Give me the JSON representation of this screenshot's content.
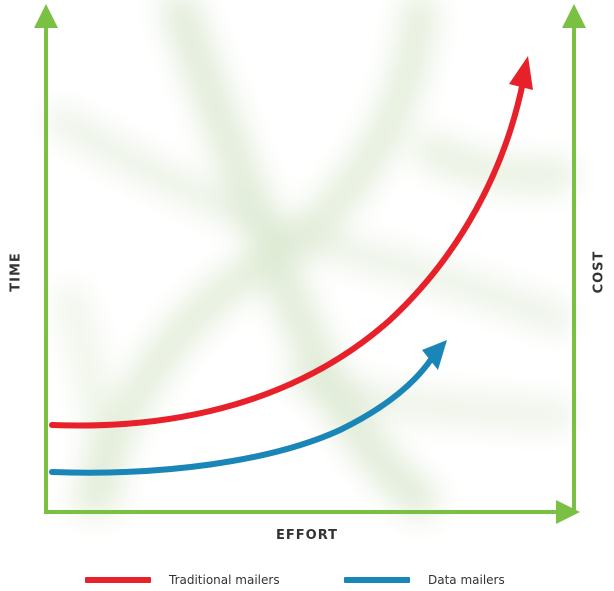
{
  "labels": {
    "x_axis": "EFFORT",
    "left_axis": "TIME",
    "right_axis": "COST"
  },
  "series": [
    {
      "name": "Traditional mailers",
      "color": "#e8202a"
    },
    {
      "name": "Data mailers",
      "color": "#1a86b8"
    }
  ],
  "colors": {
    "axis": "#7ac143",
    "background_pattern": "#dbe8cf"
  }
}
